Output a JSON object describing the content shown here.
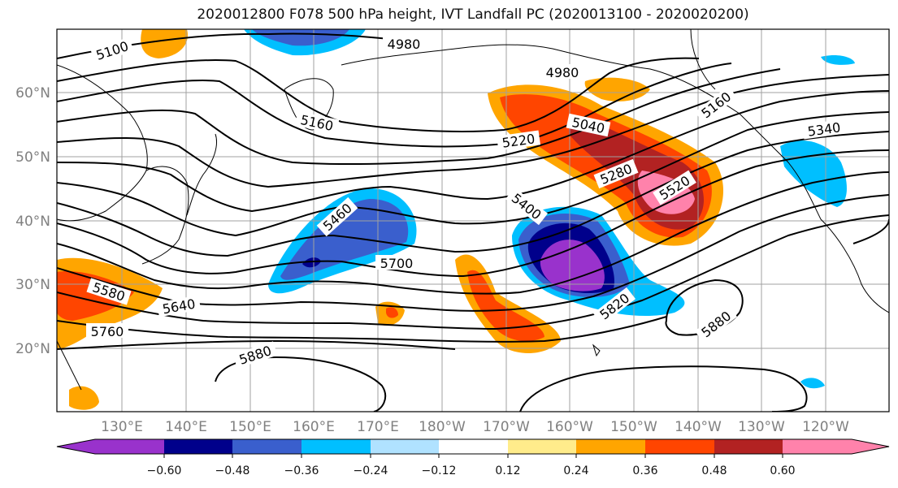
{
  "title": "2020012800 F078 500 hPa height, IVT Landfall PC (2020013100 - 2020020200)",
  "map": {
    "lon_ticks": [
      "130°E",
      "140°E",
      "150°E",
      "160°E",
      "170°E",
      "180°W",
      "170°W",
      "160°W",
      "150°W",
      "140°W",
      "130°W",
      "120°W"
    ],
    "lat_ticks": [
      "60°N",
      "50°N",
      "40°N",
      "30°N",
      "20°N"
    ],
    "grid": true,
    "height_contour_labels": [
      "5100",
      "4980",
      "4980",
      "5160",
      "5040",
      "5220",
      "5160",
      "5340",
      "5280",
      "5400",
      "5460",
      "5520",
      "5700",
      "5580",
      "5640",
      "5760",
      "5820",
      "5880",
      "5880"
    ]
  },
  "colorbar": {
    "ticks": [
      "−0.60",
      "−0.48",
      "−0.36",
      "−0.24",
      "−0.12",
      "0.12",
      "0.24",
      "0.36",
      "0.48",
      "0.60"
    ],
    "colors": [
      "#9932CC",
      "#00008B",
      "#3A5FCD",
      "#00BFFF",
      "#B0E2FF",
      "#FFFFFF",
      "#FFEC8B",
      "#FFA500",
      "#FF4500",
      "#B22222",
      "#FF82AB"
    ]
  }
}
